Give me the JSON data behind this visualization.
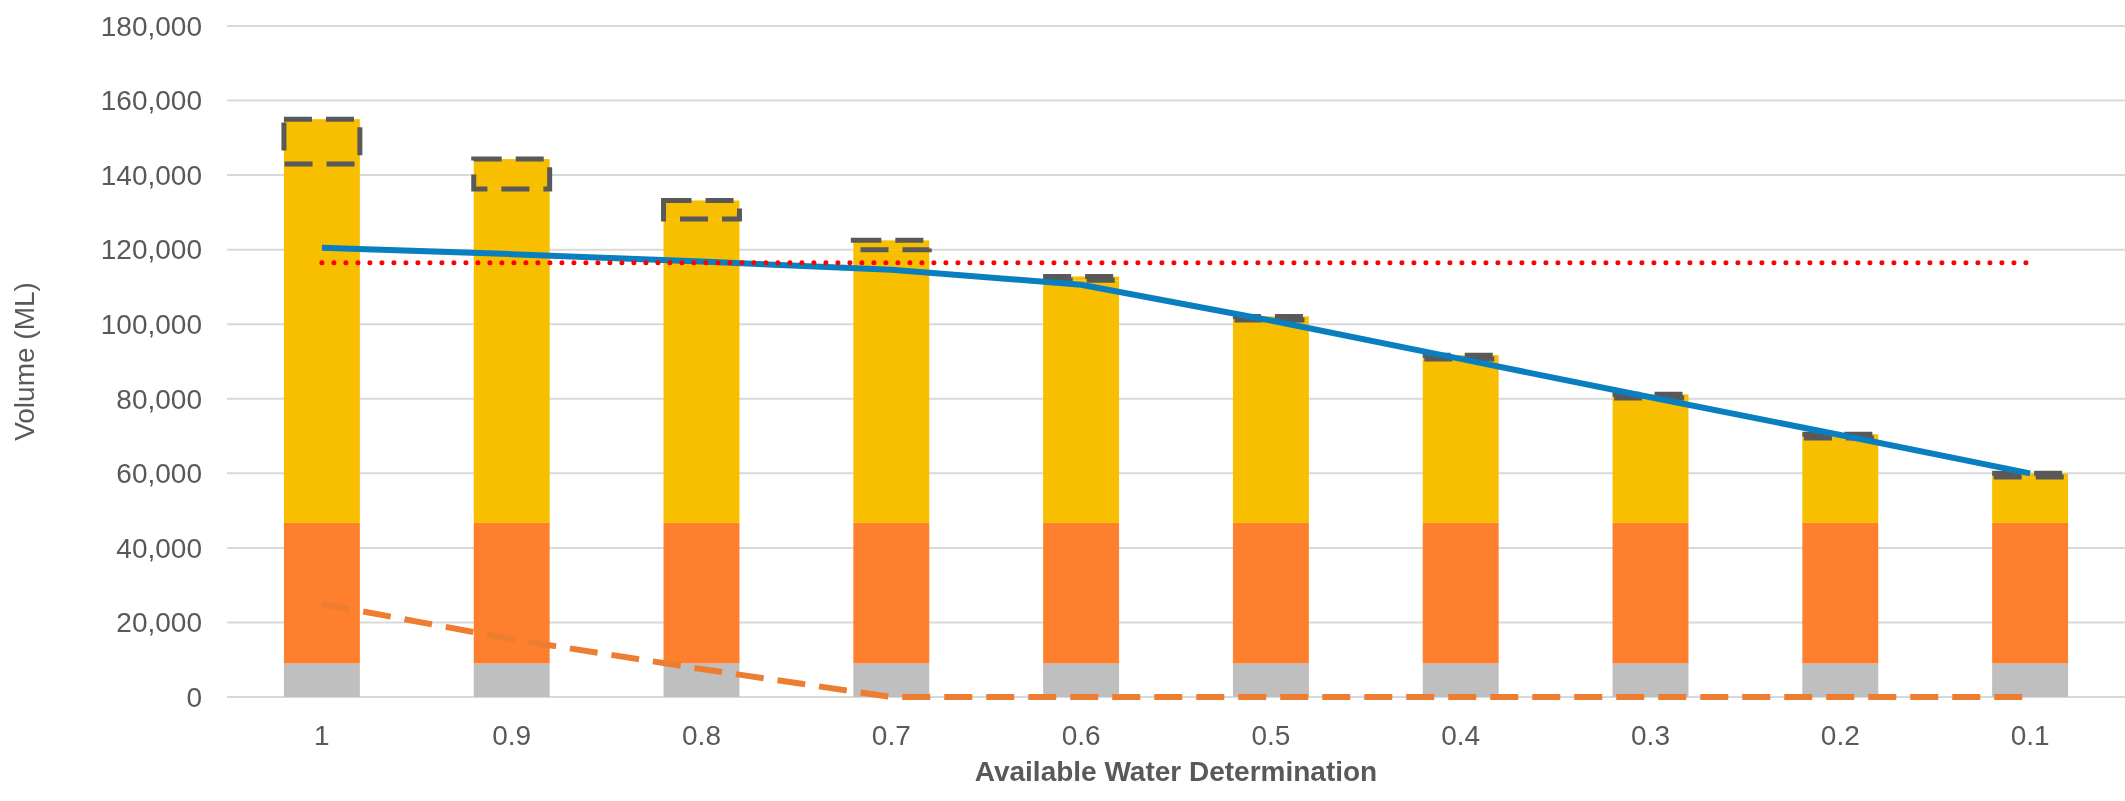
{
  "chart_data": {
    "type": "bar",
    "stacked": true,
    "xlabel": "Available Water Determination",
    "ylabel": "Volume (ML)",
    "categories": [
      "1",
      "0.9",
      "0.8",
      "0.7",
      "0.6",
      "0.5",
      "0.4",
      "0.3",
      "0.2",
      "0.1"
    ],
    "series": [
      {
        "color": "#bfbfbf",
        "values": [
          9000,
          9000,
          9000,
          9000,
          9000,
          9000,
          9000,
          9000,
          9000,
          9000
        ]
      },
      {
        "color": "#fe7f2d",
        "values": [
          37700,
          37700,
          37700,
          37700,
          37700,
          37700,
          37700,
          37700,
          37700,
          37700
        ]
      },
      {
        "color": "#f8bf00",
        "values": [
          96300,
          89600,
          81500,
          73300,
          65100,
          54400,
          44000,
          33500,
          22800,
          12300
        ]
      },
      {
        "color": "#595959",
        "line_style": "dashed",
        "values": [
          12000,
          8000,
          5000,
          2500,
          1000,
          1000,
          1000,
          1000,
          1000,
          1000
        ]
      },
      {
        "type": "line",
        "color": "#0a7fc0",
        "line_style": "solid",
        "values": [
          120500,
          118800,
          116800,
          114600,
          110600,
          101000,
          90700,
          80400,
          70300,
          60000
        ]
      },
      {
        "type": "line",
        "color": "#ff0000",
        "line_style": "dotted",
        "values": [
          116500,
          116500,
          116500,
          116500,
          116500,
          116500,
          116500,
          116500,
          116500,
          116500
        ]
      },
      {
        "type": "line",
        "color": "#ed7d31",
        "line_style": "dashed",
        "values": [
          25000,
          15500,
          7500,
          0,
          0,
          0,
          0,
          0,
          0,
          0
        ]
      }
    ],
    "ylim": [
      0,
      180000
    ],
    "yticks": [
      {
        "value": 0,
        "label": "0"
      },
      {
        "value": 20000,
        "label": "20,000"
      },
      {
        "value": 40000,
        "label": "40,000"
      },
      {
        "value": 60000,
        "label": "60,000"
      },
      {
        "value": 80000,
        "label": "80,000"
      },
      {
        "value": 100000,
        "label": "100,000"
      },
      {
        "value": 120000,
        "label": "120,000"
      },
      {
        "value": 140000,
        "label": "140,000"
      },
      {
        "value": 160000,
        "label": "160,000"
      },
      {
        "value": 180000,
        "label": "180,000"
      }
    ],
    "grid": "y",
    "marker": "none"
  }
}
